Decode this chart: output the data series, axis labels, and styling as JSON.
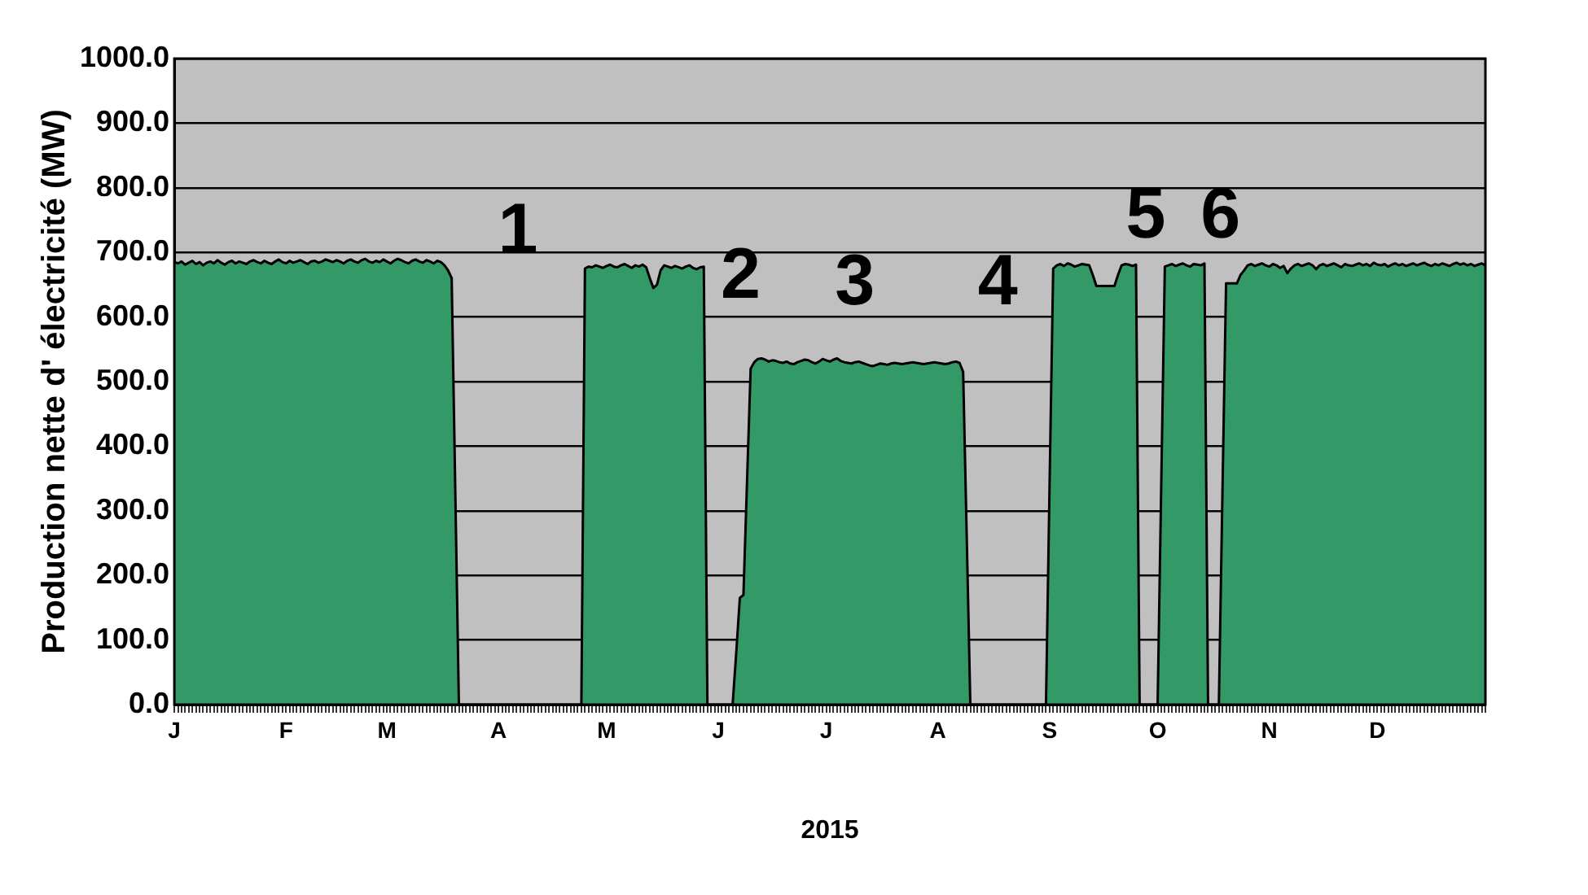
{
  "chart_data": {
    "type": "area",
    "xlabel": "2015",
    "ylabel": "Production nette d' électricité (MW)",
    "categories": [
      "J",
      null,
      null,
      null,
      null,
      null,
      null,
      null,
      null,
      null,
      null,
      null,
      null,
      null,
      null,
      null,
      null,
      null,
      null,
      null,
      null,
      null,
      null,
      null,
      null,
      null,
      null,
      null,
      null,
      null,
      null,
      "F",
      null,
      null,
      null,
      null,
      null,
      null,
      null,
      null,
      null,
      null,
      null,
      null,
      null,
      null,
      null,
      null,
      null,
      null,
      null,
      null,
      null,
      null,
      null,
      null,
      null,
      null,
      null,
      "M",
      null,
      null,
      null,
      null,
      null,
      null,
      null,
      null,
      null,
      null,
      null,
      null,
      null,
      null,
      null,
      null,
      null,
      null,
      null,
      null,
      null,
      null,
      null,
      null,
      null,
      null,
      null,
      null,
      null,
      null,
      "A",
      null,
      null,
      null,
      null,
      null,
      null,
      null,
      null,
      null,
      null,
      null,
      null,
      null,
      null,
      null,
      null,
      null,
      null,
      null,
      null,
      null,
      null,
      null,
      null,
      null,
      null,
      null,
      null,
      null,
      "M",
      null,
      null,
      null,
      null,
      null,
      null,
      null,
      null,
      null,
      null,
      null,
      null,
      null,
      null,
      null,
      null,
      null,
      null,
      null,
      null,
      null,
      null,
      null,
      null,
      null,
      null,
      null,
      null,
      null,
      null,
      "J",
      null,
      null,
      null,
      null,
      null,
      null,
      null,
      null,
      null,
      null,
      null,
      null,
      null,
      null,
      null,
      null,
      null,
      null,
      null,
      null,
      null,
      null,
      null,
      null,
      null,
      null,
      null,
      null,
      null,
      "J",
      null,
      null,
      null,
      null,
      null,
      null,
      null,
      null,
      null,
      null,
      null,
      null,
      null,
      null,
      null,
      null,
      null,
      null,
      null,
      null,
      null,
      null,
      null,
      null,
      null,
      null,
      null,
      null,
      null,
      null,
      "A",
      null,
      null,
      null,
      null,
      null,
      null,
      null,
      null,
      null,
      null,
      null,
      null,
      null,
      null,
      null,
      null,
      null,
      null,
      null,
      null,
      null,
      null,
      null,
      null,
      null,
      null,
      null,
      null,
      null,
      null,
      "S",
      null,
      null,
      null,
      null,
      null,
      null,
      null,
      null,
      null,
      null,
      null,
      null,
      null,
      null,
      null,
      null,
      null,
      null,
      null,
      null,
      null,
      null,
      null,
      null,
      null,
      null,
      null,
      null,
      null,
      "O",
      null,
      null,
      null,
      null,
      null,
      null,
      null,
      null,
      null,
      null,
      null,
      null,
      null,
      null,
      null,
      null,
      null,
      null,
      null,
      null,
      null,
      null,
      null,
      null,
      null,
      null,
      null,
      null,
      null,
      null,
      "N",
      null,
      null,
      null,
      null,
      null,
      null,
      null,
      null,
      null,
      null,
      null,
      null,
      null,
      null,
      null,
      null,
      null,
      null,
      null,
      null,
      null,
      null,
      null,
      null,
      null,
      null,
      null,
      null,
      null,
      "D",
      null,
      null,
      null,
      null,
      null,
      null,
      null,
      null,
      null,
      null,
      null,
      null,
      null,
      null,
      null,
      null,
      null,
      null,
      null,
      null,
      null,
      null,
      null,
      null,
      null,
      null,
      null,
      null,
      null,
      null
    ],
    "series": [
      {
        "color": "#339966",
        "values": [
          685,
          683,
          686,
          681,
          684,
          687,
          682,
          685,
          680,
          684,
          686,
          683,
          688,
          684,
          681,
          685,
          687,
          683,
          686,
          684,
          682,
          686,
          688,
          685,
          683,
          687,
          684,
          682,
          686,
          689,
          685,
          683,
          687,
          684,
          686,
          688,
          685,
          682,
          686,
          687,
          684,
          686,
          689,
          687,
          685,
          688,
          686,
          683,
          687,
          689,
          686,
          684,
          688,
          690,
          686,
          684,
          687,
          685,
          689,
          686,
          683,
          687,
          690,
          688,
          685,
          683,
          687,
          689,
          686,
          684,
          688,
          686,
          683,
          687,
          685,
          680,
          672,
          660,
          330,
          0,
          0,
          0,
          0,
          0,
          0,
          0,
          0,
          0,
          0,
          0,
          0,
          0,
          0,
          0,
          0,
          0,
          0,
          0,
          0,
          0,
          0,
          0,
          0,
          0,
          0,
          0,
          0,
          0,
          0,
          0,
          0,
          0,
          0,
          0,
          675,
          678,
          677,
          680,
          678,
          676,
          679,
          681,
          678,
          677,
          680,
          682,
          679,
          676,
          680,
          678,
          681,
          677,
          660,
          645,
          650,
          672,
          680,
          678,
          676,
          679,
          677,
          675,
          678,
          680,
          676,
          674,
          677,
          678,
          0,
          0,
          0,
          0,
          0,
          0,
          0,
          0,
          80,
          165,
          170,
          345,
          520,
          530,
          535,
          536,
          534,
          531,
          533,
          532,
          530,
          529,
          531,
          528,
          527,
          530,
          532,
          534,
          533,
          530,
          528,
          531,
          535,
          533,
          531,
          534,
          536,
          532,
          530,
          529,
          528,
          530,
          531,
          529,
          527,
          525,
          524,
          526,
          528,
          527,
          526,
          528,
          529,
          528,
          527,
          528,
          529,
          530,
          529,
          528,
          527,
          528,
          529,
          530,
          529,
          528,
          527,
          528,
          530,
          531,
          529,
          515,
          260,
          0,
          0,
          0,
          0,
          0,
          0,
          0,
          0,
          0,
          0,
          0,
          0,
          0,
          0,
          0,
          0,
          0,
          0,
          0,
          0,
          0,
          0,
          340,
          675,
          680,
          682,
          679,
          683,
          681,
          678,
          680,
          682,
          681,
          680,
          665,
          648,
          648,
          648,
          648,
          648,
          648,
          665,
          680,
          682,
          681,
          679,
          681,
          0,
          0,
          0,
          0,
          0,
          0,
          340,
          678,
          680,
          682,
          679,
          681,
          683,
          680,
          678,
          682,
          681,
          680,
          683,
          0,
          0,
          0,
          0,
          330,
          652,
          652,
          652,
          652,
          665,
          672,
          680,
          682,
          679,
          681,
          683,
          680,
          678,
          682,
          680,
          676,
          679,
          668,
          675,
          680,
          682,
          679,
          681,
          683,
          680,
          674,
          680,
          682,
          679,
          681,
          683,
          680,
          677,
          682,
          680,
          679,
          681,
          683,
          680,
          682,
          679,
          684,
          681,
          680,
          682,
          678,
          681,
          683,
          680,
          682,
          679,
          681,
          683,
          680,
          682,
          684,
          681,
          679,
          682,
          680,
          683,
          681,
          679,
          682,
          684,
          681,
          683,
          680,
          682,
          679,
          681,
          683,
          680
        ]
      }
    ],
    "ylim": [
      0,
      1000
    ],
    "yticks": [
      {
        "value": 0,
        "label": "0.0"
      },
      {
        "value": 100,
        "label": "100.0"
      },
      {
        "value": 200,
        "label": "200.0"
      },
      {
        "value": 300,
        "label": "300.0"
      },
      {
        "value": 400,
        "label": "400.0"
      },
      {
        "value": 500,
        "label": "500.0"
      },
      {
        "value": 600,
        "label": "600.0"
      },
      {
        "value": 700,
        "label": "700.0"
      },
      {
        "value": 800,
        "label": "800.0"
      },
      {
        "value": 900,
        "label": "900.0"
      },
      {
        "value": 1000,
        "label": "1000.0"
      }
    ],
    "grid": "y",
    "annotations": [
      "1",
      "2",
      "3",
      "4",
      "5",
      "6"
    ]
  }
}
